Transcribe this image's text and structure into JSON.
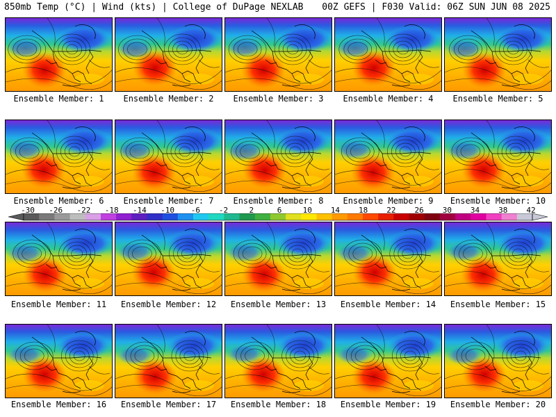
{
  "header": {
    "left": "850mb Temp (°C) | Wind (kts) | College of DuPage NEXLAB",
    "right": "00Z GEFS | F030 Valid: 06Z SUN JUN 08 2025"
  },
  "panels": [
    {
      "label": "Ensemble Member: 1"
    },
    {
      "label": "Ensemble Member: 2"
    },
    {
      "label": "Ensemble Member: 3"
    },
    {
      "label": "Ensemble Member: 4"
    },
    {
      "label": "Ensemble Member: 5"
    },
    {
      "label": "Ensemble Member: 6"
    },
    {
      "label": "Ensemble Member: 7"
    },
    {
      "label": "Ensemble Member: 8"
    },
    {
      "label": "Ensemble Member: 9"
    },
    {
      "label": "Ensemble Member: 10"
    },
    {
      "label": "Ensemble Member: 11"
    },
    {
      "label": "Ensemble Member: 12"
    },
    {
      "label": "Ensemble Member: 13"
    },
    {
      "label": "Ensemble Member: 14"
    },
    {
      "label": "Ensemble Member: 15"
    },
    {
      "label": "Ensemble Member: 16"
    },
    {
      "label": "Ensemble Member: 17"
    },
    {
      "label": "Ensemble Member: 18"
    },
    {
      "label": "Ensemble Member: 19"
    },
    {
      "label": "Ensemble Member: 20"
    }
  ],
  "colorbar": {
    "ticks": [
      "-30",
      "-26",
      "-22",
      "-18",
      "-14",
      "-10",
      "-6",
      "-2",
      "2",
      "6",
      "10",
      "14",
      "18",
      "22",
      "26",
      "30",
      "34",
      "38",
      "42"
    ],
    "colors": [
      "#5a5a5a",
      "#7a7a7a",
      "#9a9a9a",
      "#bdbdbd",
      "#d9a0e6",
      "#c040e0",
      "#9020d0",
      "#6020c0",
      "#3030c8",
      "#2050e0",
      "#1e90f0",
      "#20c8f0",
      "#20d8c0",
      "#20b890",
      "#209850",
      "#40b040",
      "#90c830",
      "#e0e020",
      "#ffe800",
      "#ffc000",
      "#ff9a00",
      "#ff7a00",
      "#ff4a00",
      "#e82000",
      "#c80000",
      "#a00000",
      "#800010",
      "#a00040",
      "#c00080",
      "#e000a0",
      "#f040c0",
      "#f080d0",
      "#c8c8d8"
    ]
  }
}
